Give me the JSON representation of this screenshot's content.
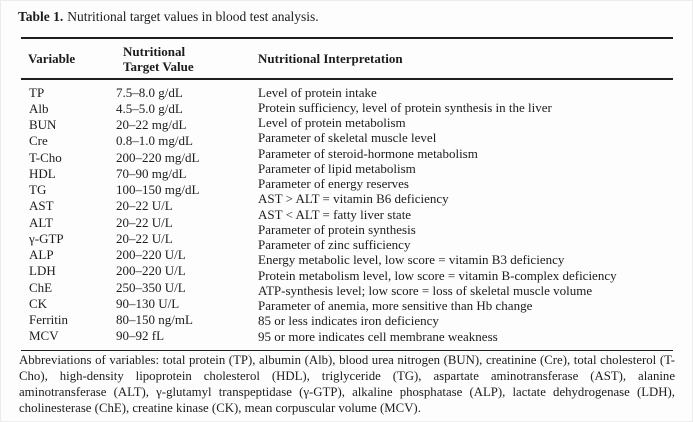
{
  "caption": {
    "label": "Table 1.",
    "text": "Nutritional target values in blood test analysis."
  },
  "header": {
    "variable": "Variable",
    "target": "Nutritional Target Value",
    "interpretation": "Nutritional Interpretation"
  },
  "rows": [
    {
      "variable": "TP",
      "target": "7.5–8.0 g/dL"
    },
    {
      "variable": "Alb",
      "target": "4.5–5.0 g/dL"
    },
    {
      "variable": "BUN",
      "target": "20–22 mg/dL"
    },
    {
      "variable": "Cre",
      "target": "0.8–1.0 mg/dL"
    },
    {
      "variable": "T-Cho",
      "target": "200–220 mg/dL"
    },
    {
      "variable": "HDL",
      "target": "70–90 mg/dL"
    },
    {
      "variable": "TG",
      "target": "100–150 mg/dL"
    },
    {
      "variable": "AST",
      "target": "20–22 U/L"
    },
    {
      "variable": "ALT",
      "target": "20–22 U/L"
    },
    {
      "variable": "γ-GTP",
      "target": "20–22 U/L"
    },
    {
      "variable": "ALP",
      "target": "200–220 U/L"
    },
    {
      "variable": "LDH",
      "target": "200–220 U/L"
    },
    {
      "variable": "ChE",
      "target": "250–350 U/L"
    },
    {
      "variable": "CK",
      "target": "90–130 U/L"
    },
    {
      "variable": "Ferritin",
      "target": "80–150 ng/mL"
    },
    {
      "variable": "MCV",
      "target": "90–92 fL"
    }
  ],
  "interpretations": [
    "Level of protein intake",
    "Protein sufficiency, level of protein synthesis in the liver",
    "Level of protein metabolism",
    "Parameter of skeletal muscle level",
    "Parameter of steroid-hormone metabolism",
    "Parameter of lipid metabolism",
    "Parameter of energy reserves",
    "AST > ALT = vitamin B6 deficiency",
    "AST < ALT = fatty liver state",
    "Parameter of protein synthesis",
    "Parameter of zinc sufficiency",
    "Energy metabolic level, low score = vitamin B3 deficiency",
    "Protein metabolism level, low score = vitamin B-complex deficiency",
    "ATP-synthesis level; low score = loss of skeletal muscle volume",
    "Parameter of anemia, more sensitive than Hb change",
    "85 or less indicates iron deficiency",
    "95 or more indicates cell membrane weakness"
  ],
  "footnote": "Abbreviations of variables: total protein (TP), albumin (Alb), blood urea nitrogen (BUN), creatinine (Cre), total cholesterol (T-Cho), high-density lipoprotein cholesterol (HDL), triglyceride (TG), aspartate aminotransferase (AST), alanine aminotransferase (ALT), γ-glutamyl transpeptidase (γ-GTP), alkaline phosphatase (ALP), lactate dehydrogenase (LDH), cholinesterase (ChE), creatine kinase (CK), mean corpuscular volume (MCV)."
}
